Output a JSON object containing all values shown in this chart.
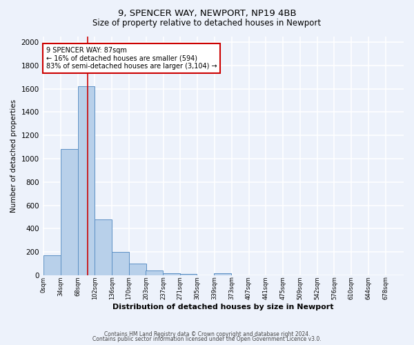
{
  "title_line1": "9, SPENCER WAY, NEWPORT, NP19 4BB",
  "title_line2": "Size of property relative to detached houses in Newport",
  "xlabel": "Distribution of detached houses by size in Newport",
  "ylabel": "Number of detached properties",
  "bin_labels": [
    "0sqm",
    "34sqm",
    "68sqm",
    "102sqm",
    "136sqm",
    "170sqm",
    "203sqm",
    "237sqm",
    "271sqm",
    "305sqm",
    "339sqm",
    "373sqm",
    "407sqm",
    "441sqm",
    "475sqm",
    "509sqm",
    "542sqm",
    "576sqm",
    "610sqm",
    "644sqm",
    "678sqm"
  ],
  "bar_values": [
    170,
    1085,
    1620,
    480,
    200,
    100,
    40,
    20,
    10,
    0,
    20,
    0,
    0,
    0,
    0,
    0,
    0,
    0,
    0,
    0
  ],
  "bar_color": "#b8d0ea",
  "bar_edge_color": "#5b8fc4",
  "background_color": "#edf2fb",
  "grid_color": "#ffffff",
  "vline_color": "#cc0000",
  "annotation_text": "9 SPENCER WAY: 87sqm\n← 16% of detached houses are smaller (594)\n83% of semi-detached houses are larger (3,104) →",
  "annotation_box_color": "#ffffff",
  "annotation_box_edge": "#cc0000",
  "ylim": [
    0,
    2050
  ],
  "yticks": [
    0,
    200,
    400,
    600,
    800,
    1000,
    1200,
    1400,
    1600,
    1800,
    2000
  ],
  "footnote1": "Contains HM Land Registry data © Crown copyright and database right 2024.",
  "footnote2": "Contains public sector information licensed under the Open Government Licence v3.0.",
  "bin_width": 34,
  "bin_starts": [
    0,
    34,
    68,
    102,
    136,
    170,
    203,
    237,
    271,
    305,
    339,
    373,
    407,
    441,
    475,
    509,
    542,
    576,
    610,
    644
  ],
  "vline_x": 87
}
